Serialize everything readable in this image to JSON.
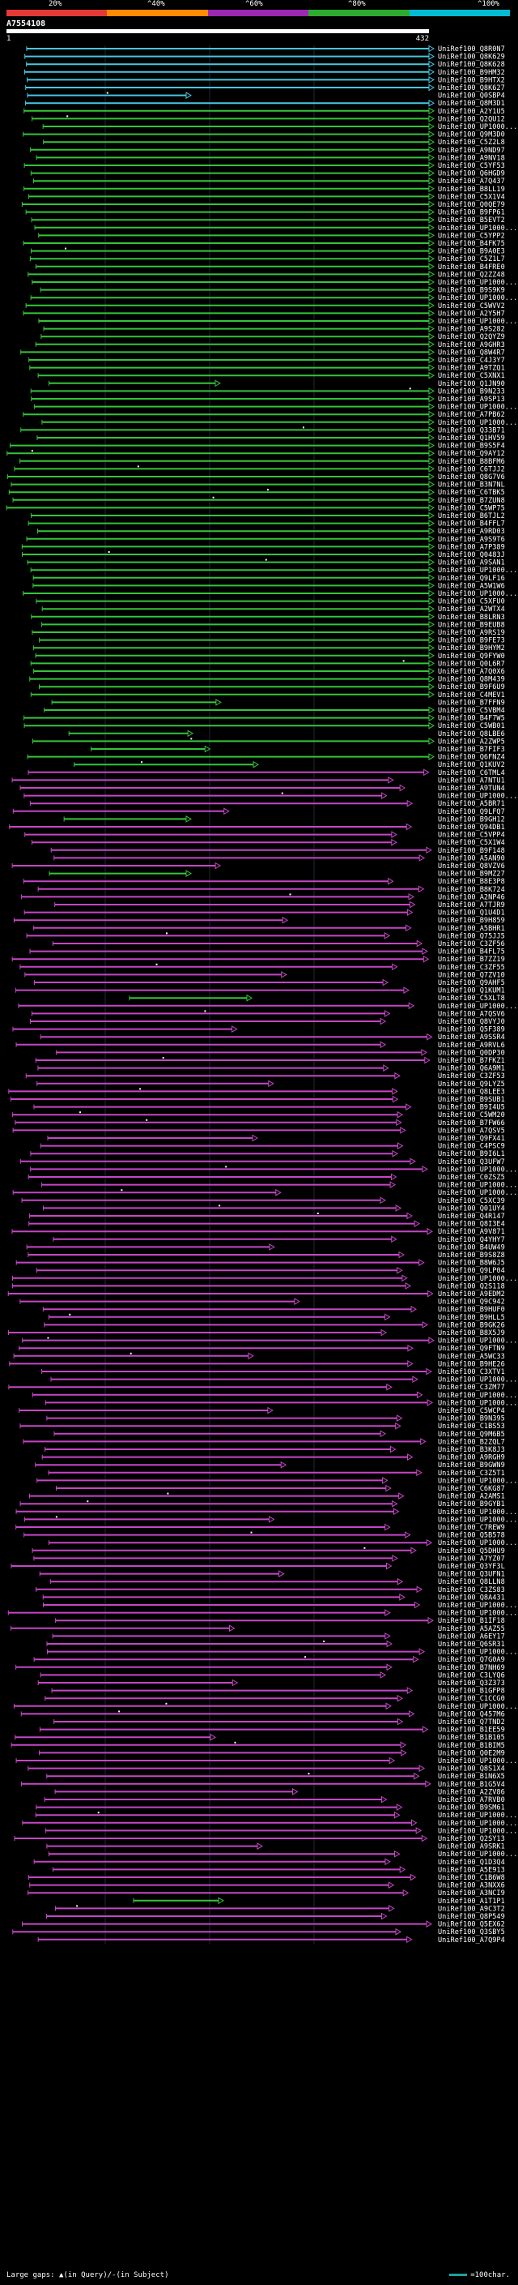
{
  "header": {
    "percent_labels": [
      "20%",
      "^40%",
      "^60%",
      "^80%",
      "^100%"
    ],
    "color_bands": [
      "#e53935",
      "#ff8c00",
      "#9c27b0",
      "#2eab2e",
      "#00bcd4"
    ],
    "accession": "A7554108",
    "query_start": "1",
    "query_end": "432"
  },
  "colors": {
    "cyan": "#46c8e0",
    "green": "#35c43a",
    "magenta": "#c646c6",
    "insertion": "#ffffff"
  },
  "hits": {
    "names": [
      "UniRef100_Q8R0N7",
      "UniRef100_Q8K629",
      "UniRef100_Q8K628",
      "UniRef100_B9HM32",
      "UniRef100_B9HTX2",
      "UniRef100_Q8K627",
      "UniRef100_Q0SBP4",
      "UniRef100_Q8M3D1",
      "UniRef100_A2Y1U5",
      "UniRef100_Q2QU12",
      "UniRef100_UP1000...",
      "UniRef100_Q9M3D0",
      "UniRef100_C5Z2L8",
      "UniRef100_A9ND97",
      "UniRef100_A9NV18",
      "UniRef100_C5YF53",
      "UniRef100_Q6HGD9",
      "UniRef100_A7Q437",
      "UniRef100_B8LL19",
      "UniRef100_C5X1V4",
      "UniRef100_Q0QE79",
      "UniRef100_B9FP61",
      "UniRef100_B5EVT2",
      "UniRef100_UP1000...",
      "UniRef100_C5YPP2",
      "UniRef100_B4FK75",
      "UniRef100_B9A0E3",
      "UniRef100_C5Z1L7",
      "UniRef100_B4FRE0",
      "UniRef100_Q2ZZ48",
      "UniRef100_UP1000...",
      "UniRef100_B9S9K9",
      "UniRef100_UP1000...",
      "UniRef100_C5WVV2",
      "UniRef100_A2Y5H7",
      "UniRef100_UP1000...",
      "UniRef100_A9S282",
      "UniRef100_Q2QYZ9",
      "UniRef100_A9GHR3",
      "UniRef100_Q8W4R7",
      "UniRef100_C4J3Y7",
      "UniRef100_A9TZQ1",
      "UniRef100_C5XNX1",
      "UniRef100_Q1JN90",
      "UniRef100_B9N233",
      "UniRef100_A9SP13",
      "UniRef100_UP1000...",
      "UniRef100_A7PB62",
      "UniRef100_UP1000...",
      "UniRef100_Q33B71",
      "UniRef100_Q1HV59",
      "UniRef100_B9S5F4",
      "UniRef100_Q9AY12",
      "UniRef100_B8BFM6",
      "UniRef100_C6TJJ2",
      "UniRef100_Q8G7V6",
      "UniRef100_B3N7NL",
      "UniRef100_C6TBK5",
      "UniRef100_B7ZUN8",
      "UniRef100_C5WP75",
      "UniRef100_B6TJL2",
      "UniRef100_B4FFL7",
      "UniRef100_A9RD03",
      "UniRef100_A9S9T6",
      "UniRef100_A7P389",
      "UniRef100_Q0483J",
      "UniRef100_A9SAN1",
      "UniRef100_UP1000...",
      "UniRef100_Q9LF16",
      "UniRef100_A5W1W6",
      "UniRef100_UP1000...",
      "UniRef100_C5XFU0",
      "UniRef100_A2WTX4",
      "UniRef100_B8LRN3",
      "UniRef100_B9EUB8",
      "UniRef100_A9RS19",
      "UniRef100_B9FE73",
      "UniRef100_B9HYM2",
      "UniRef100_Q9FYW0",
      "UniRef100_Q0L6R7",
      "UniRef100_A7Q0X6",
      "UniRef100_Q8M439",
      "UniRef100_B9F6U9",
      "UniRef100_C4MEV1",
      "UniRef100_B7FFN9",
      "UniRef100_C5VBM4",
      "UniRef100_B4F7W5",
      "UniRef100_C5WB01",
      "UniRef100_Q8LBE6",
      "UniRef100_A2ZWP5",
      "UniRef100_B7FIF3",
      "UniRef100_Q6FNZ4",
      "UniRef100_Q1KUV2",
      "UniRef100_C6TML4",
      "UniRef100_A7NTU1",
      "UniRef100_A9TUN4",
      "UniRef100_UP1000...",
      "UniRef100_A5BR71",
      "UniRef100_Q9LFQ7",
      "UniRef100_B9GH12",
      "UniRef100_Q94DB1",
      "UniRef100_C5VPP4",
      "UniRef100_C5X1W4",
      "UniRef100_B9F148",
      "UniRef100_A5AN90",
      "UniRef100_Q8VZV6",
      "UniRef100_B9MZ27",
      "UniRef100_B8E3P8",
      "UniRef100_B8K724",
      "UniRef100_A2NP46",
      "UniRef100_A7TJR9",
      "UniRef100_Q1U4D1",
      "UniRef100_B9H859",
      "UniRef100_A5BHR1",
      "UniRef100_Q75JJ5",
      "UniRef100_C3ZF56",
      "UniRef100_B4FL75",
      "UniRef100_B7ZZ19",
      "UniRef100_C3ZF55",
      "UniRef100_Q7ZV10",
      "UniRef100_Q9AHF5",
      "UniRef100_Q1KUM1",
      "UniRef100_C5XLT8",
      "UniRef100_UP1000...",
      "UniRef100_A7QSV6",
      "UniRef100_Q8VYJ0",
      "UniRef100_Q5F389",
      "UniRef100_A9SSR4",
      "UniRef100_A9RVL6",
      "UniRef100_Q0DP30",
      "UniRef100_B7FKZ1",
      "UniRef100_Q6A9M1",
      "UniRef100_C3ZF53",
      "UniRef100_Q9LYZ5",
      "UniRef100_Q8LEE3",
      "UniRef100_B9SUB1",
      "UniRef100_B9I4U5",
      "UniRef100_C5WM20",
      "UniRef100_B7FW66",
      "UniRef100_A7QSV5",
      "UniRef100_Q9FX41",
      "UniRef100_C4PSC9",
      "UniRef100_B9I6L1",
      "UniRef100_Q3UFW7",
      "UniRef100_UP1000...",
      "UniRef100_C0ZSZ5",
      "UniRef100_UP1000...",
      "UniRef100_UP1000...",
      "UniRef100_C5XC39",
      "UniRef100_Q01UY4",
      "UniRef100_Q4R147",
      "UniRef100_Q8I3E4",
      "UniRef100_A9V871",
      "UniRef100_Q4YHY7",
      "UniRef100_B4UW49",
      "UniRef100_B9S8Z8",
      "UniRef100_B8W6J5",
      "UniRef100_Q9LP04",
      "UniRef100_UP1000...",
      "UniRef100_Q2S118",
      "UniRef100_A9EDM2",
      "UniRef100_Q9C942",
      "UniRef100_B9HUF0",
      "UniRef100_B9HLL5",
      "UniRef100_B9GK26",
      "UniRef100_B8X5J9",
      "UniRef100_UP1000...",
      "UniRef100_Q9FTN9",
      "UniRef100_A5WC33",
      "UniRef100_B9HE26",
      "UniRef100_C3XTV1",
      "UniRef100_UP1000...",
      "UniRef100_C3ZM77",
      "UniRef100_UP1000...",
      "UniRef100_UP1000...",
      "UniRef100_C5WCP4",
      "UniRef100_B9N395",
      "UniRef100_C1BS53",
      "UniRef100_Q9M6B5",
      "UniRef100_B2ZQL7",
      "UniRef100_B3K8J3",
      "UniRef100_A9RGH9",
      "UniRef100_B9GWN9",
      "UniRef100_C3Z5T1",
      "UniRef100_UP1000...",
      "UniRef100_C6KG87",
      "UniRef100_A2AMS1",
      "UniRef100_B9GYB1",
      "UniRef100_UP1000...",
      "UniRef100_UP1000...",
      "UniRef100_C7REW9",
      "UniRef100_Q5B578",
      "UniRef100_UP1000...",
      "UniRef100_Q5DHU9",
      "UniRef100_A7YZ07",
      "UniRef100_Q3YF3L",
      "UniRef100_Q3UFN1",
      "UniRef100_Q8LLN8",
      "UniRef100_C3ZS83",
      "UniRef100_Q8A431",
      "UniRef100_UP1000...",
      "UniRef100_UP1000...",
      "UniRef100_B1IF18",
      "UniRef100_A5AZ55",
      "UniRef100_A6EY17",
      "UniRef100_Q6SR31",
      "UniRef100_UP1000...",
      "UniRef100_Q7G0A9",
      "UniRef100_B7NH69",
      "UniRef100_C3LYQ6",
      "UniRef100_Q3Z373",
      "UniRef100_B1GFP8",
      "UniRef100_C1CCG0",
      "UniRef100_UP1000...",
      "UniRef100_Q457M6",
      "UniRef100_Q7TND2",
      "UniRef100_B1EE59",
      "UniRef100_B1B105",
      "UniRef100_B1BIM5",
      "UniRef100_Q0E2M9",
      "UniRef100_UP1000...",
      "UniRef100_Q8S1X4",
      "UniRef100_B1N6X5",
      "UniRef100_B1G5V4",
      "UniRef100_A2ZV86",
      "UniRef100_A7RVB0",
      "UniRef100_B9SM61",
      "UniRef100_UP1000...",
      "UniRef100_UP1000...",
      "UniRef100_UP1000...",
      "UniRef100_Q2SY13",
      "UniRef100_A9SRK1",
      "UniRef100_UP1000...",
      "UniRef100_Q1D3Q4",
      "UniRef100_A5E913",
      "UniRef100_C1B6W8",
      "UniRef100_A3NXX6",
      "UniRef100_A3NCI9",
      "UniRef100_A1T1P1",
      "UniRef100_A9C3T2",
      "UniRef100_Q8P549",
      "UniRef100_Q5EX62",
      "UniRef100_Q3SBY5",
      "UniRef100_A7Q9P4"
    ]
  },
  "legend": {
    "left_text": "Large gaps: ▲(in Query)/-(in Subject)",
    "right_text": "=100char."
  }
}
